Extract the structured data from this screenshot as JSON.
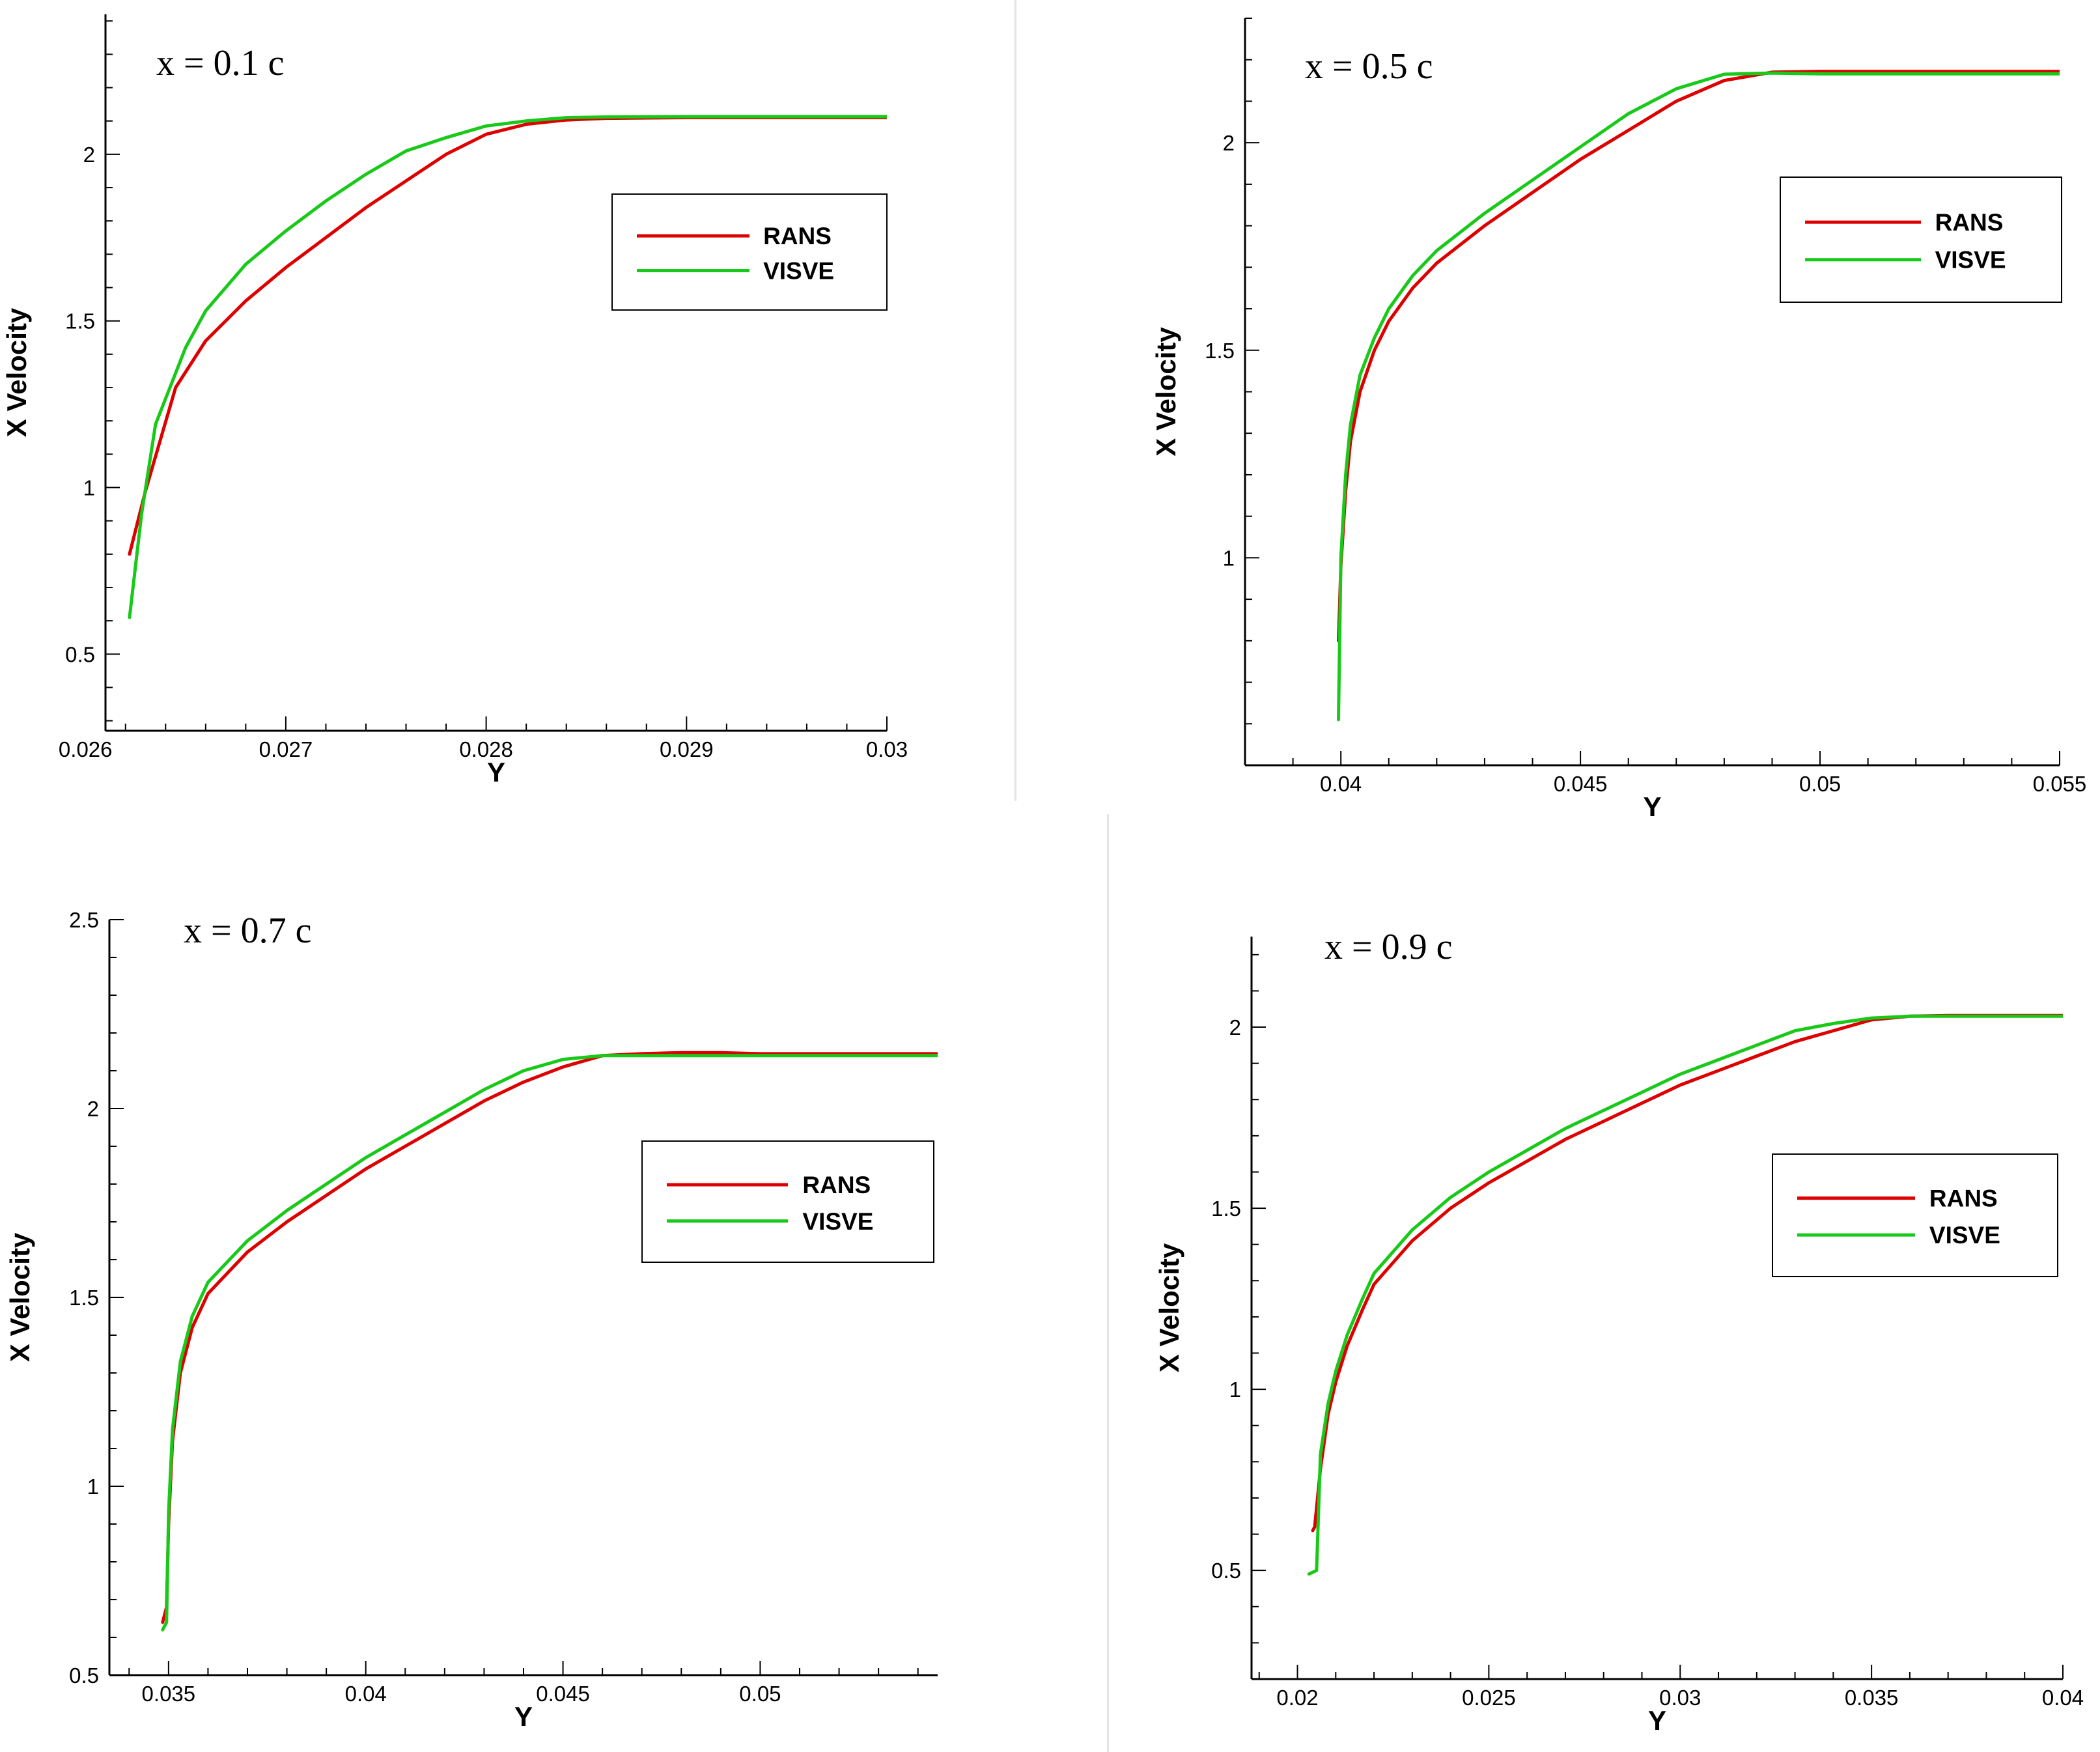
{
  "figure": {
    "legend_labels": [
      "RANS",
      "VISVE"
    ],
    "series_colors": {
      "RANS": "#dd0000",
      "VISVE": "#19c919"
    }
  },
  "chart_data": [
    {
      "type": "line",
      "title": "x = 0.1 c",
      "xlabel": "Y",
      "ylabel": "X Velocity",
      "xlim": [
        0.0261,
        0.03
      ],
      "ylim": [
        0.27,
        2.42
      ],
      "xticks": [
        0.026,
        0.027,
        0.028,
        0.029,
        0.03
      ],
      "xtick_labels": [
        "0.026",
        "0.027",
        "0.028",
        "0.029",
        "0.03"
      ],
      "yticks": [
        0.5,
        1,
        1.5,
        2
      ],
      "ytick_labels": [
        "0.5",
        "1",
        "1.5",
        "2"
      ],
      "legend": "right",
      "series": [
        {
          "name": "RANS",
          "color": "#dd0000",
          "x": [
            0.02622,
            0.0263,
            0.02645,
            0.0266,
            0.0268,
            0.027,
            0.0272,
            0.0274,
            0.0276,
            0.0278,
            0.028,
            0.0282,
            0.0284,
            0.0286,
            0.029,
            0.0295,
            0.03
          ],
          "y": [
            0.8,
            0.99,
            1.3,
            1.44,
            1.56,
            1.66,
            1.75,
            1.84,
            1.92,
            2.0,
            2.06,
            2.09,
            2.103,
            2.108,
            2.11,
            2.11,
            2.11
          ]
        },
        {
          "name": "VISVE",
          "color": "#19c919",
          "x": [
            0.02622,
            0.02628,
            0.02635,
            0.0265,
            0.0266,
            0.0268,
            0.027,
            0.0272,
            0.0274,
            0.0276,
            0.0278,
            0.028,
            0.0282,
            0.0284,
            0.0286,
            0.029,
            0.0295,
            0.03
          ],
          "y": [
            0.61,
            0.92,
            1.19,
            1.42,
            1.53,
            1.67,
            1.77,
            1.86,
            1.94,
            2.01,
            2.05,
            2.085,
            2.1,
            2.11,
            2.112,
            2.113,
            2.113,
            2.113
          ]
        }
      ]
    },
    {
      "type": "line",
      "title": "x = 0.5 c",
      "xlabel": "Y",
      "ylabel": "X Velocity",
      "xlim": [
        0.038,
        0.055
      ],
      "ylim": [
        0.5,
        2.3
      ],
      "xticks": [
        0.04,
        0.045,
        0.05,
        0.055
      ],
      "xtick_labels": [
        "0.04",
        "0.045",
        "0.05",
        "0.055"
      ],
      "yticks": [
        1,
        1.5,
        2
      ],
      "ytick_labels": [
        "1",
        "1.5",
        "2"
      ],
      "legend": "right",
      "series": [
        {
          "name": "RANS",
          "color": "#dd0000",
          "x": [
            0.03995,
            0.04,
            0.0401,
            0.0402,
            0.0404,
            0.0407,
            0.041,
            0.0415,
            0.042,
            0.043,
            0.044,
            0.045,
            0.046,
            0.047,
            0.048,
            0.049,
            0.05,
            0.052,
            0.055
          ],
          "y": [
            0.8,
            0.98,
            1.16,
            1.28,
            1.4,
            1.5,
            1.57,
            1.65,
            1.71,
            1.8,
            1.88,
            1.96,
            2.03,
            2.1,
            2.15,
            2.17,
            2.172,
            2.172,
            2.172
          ]
        },
        {
          "name": "VISVE",
          "color": "#19c919",
          "x": [
            0.03995,
            0.04,
            0.0401,
            0.0402,
            0.0404,
            0.0407,
            0.041,
            0.0415,
            0.042,
            0.043,
            0.044,
            0.045,
            0.046,
            0.047,
            0.048,
            0.049,
            0.05,
            0.052,
            0.055
          ],
          "y": [
            0.61,
            1.0,
            1.2,
            1.32,
            1.44,
            1.53,
            1.6,
            1.68,
            1.74,
            1.83,
            1.91,
            1.99,
            2.07,
            2.13,
            2.165,
            2.168,
            2.166,
            2.166,
            2.166
          ]
        }
      ]
    },
    {
      "type": "line",
      "title": "x = 0.7 c",
      "xlabel": "Y",
      "ylabel": "X Velocity",
      "xlim": [
        0.0335,
        0.0545
      ],
      "ylim": [
        0.5,
        2.5
      ],
      "xticks": [
        0.035,
        0.04,
        0.045,
        0.05
      ],
      "xtick_labels": [
        "0.035",
        "0.04",
        "0.045",
        "0.05"
      ],
      "yticks": [
        0.5,
        1,
        1.5,
        2,
        2.5
      ],
      "ytick_labels": [
        "0.5",
        "1",
        "1.5",
        "2",
        "2.5"
      ],
      "legend": "right",
      "series": [
        {
          "name": "RANS",
          "color": "#dd0000",
          "x": [
            0.03485,
            0.03495,
            0.035,
            0.0351,
            0.0353,
            0.0356,
            0.036,
            0.037,
            0.038,
            0.039,
            0.04,
            0.041,
            0.042,
            0.043,
            0.044,
            0.045,
            0.046,
            0.047,
            0.048,
            0.049,
            0.05,
            0.052,
            0.0545
          ],
          "y": [
            0.64,
            0.68,
            0.9,
            1.12,
            1.3,
            1.42,
            1.51,
            1.62,
            1.7,
            1.77,
            1.84,
            1.9,
            1.96,
            2.02,
            2.07,
            2.11,
            2.14,
            2.145,
            2.148,
            2.148,
            2.145,
            2.145,
            2.145
          ]
        },
        {
          "name": "VISVE",
          "color": "#19c919",
          "x": [
            0.03485,
            0.03495,
            0.035,
            0.0351,
            0.0353,
            0.0356,
            0.036,
            0.037,
            0.038,
            0.039,
            0.04,
            0.041,
            0.042,
            0.043,
            0.044,
            0.045,
            0.046,
            0.047,
            0.048,
            0.05,
            0.052,
            0.0545
          ],
          "y": [
            0.62,
            0.64,
            0.93,
            1.15,
            1.33,
            1.45,
            1.54,
            1.65,
            1.73,
            1.8,
            1.87,
            1.93,
            1.99,
            2.05,
            2.1,
            2.13,
            2.14,
            2.14,
            2.14,
            2.14,
            2.14,
            2.14
          ]
        }
      ]
    },
    {
      "type": "line",
      "title": "x = 0.9 c",
      "xlabel": "Y",
      "ylabel": "X Velocity",
      "xlim": [
        0.0188,
        0.04
      ],
      "ylim": [
        0.2,
        2.25
      ],
      "xticks": [
        0.02,
        0.025,
        0.03,
        0.035,
        0.04
      ],
      "xtick_labels": [
        "0.02",
        "0.025",
        "0.03",
        "0.035",
        "0.04"
      ],
      "yticks": [
        0.5,
        1,
        1.5,
        2
      ],
      "ytick_labels": [
        "0.5",
        "1",
        "1.5",
        "2"
      ],
      "legend": "right",
      "series": [
        {
          "name": "RANS",
          "color": "#dd0000",
          "x": [
            0.0204,
            0.02045,
            0.0206,
            0.0208,
            0.021,
            0.0213,
            0.0217,
            0.022,
            0.023,
            0.024,
            0.025,
            0.026,
            0.027,
            0.028,
            0.029,
            0.03,
            0.031,
            0.032,
            0.033,
            0.034,
            0.035,
            0.036,
            0.037,
            0.038,
            0.04
          ],
          "y": [
            0.61,
            0.62,
            0.78,
            0.93,
            1.02,
            1.12,
            1.22,
            1.29,
            1.41,
            1.5,
            1.57,
            1.63,
            1.69,
            1.74,
            1.79,
            1.84,
            1.88,
            1.92,
            1.96,
            1.99,
            2.02,
            2.03,
            2.032,
            2.032,
            2.032
          ]
        },
        {
          "name": "VISVE",
          "color": "#19c919",
          "x": [
            0.0203,
            0.0205,
            0.0206,
            0.0208,
            0.021,
            0.0213,
            0.0217,
            0.022,
            0.023,
            0.024,
            0.025,
            0.026,
            0.027,
            0.028,
            0.029,
            0.03,
            0.031,
            0.032,
            0.033,
            0.034,
            0.035,
            0.036,
            0.037,
            0.038,
            0.04
          ],
          "y": [
            0.49,
            0.5,
            0.82,
            0.96,
            1.05,
            1.15,
            1.25,
            1.32,
            1.44,
            1.53,
            1.6,
            1.66,
            1.72,
            1.77,
            1.82,
            1.87,
            1.91,
            1.95,
            1.99,
            2.01,
            2.025,
            2.03,
            2.03,
            2.03,
            2.03
          ]
        }
      ]
    }
  ]
}
